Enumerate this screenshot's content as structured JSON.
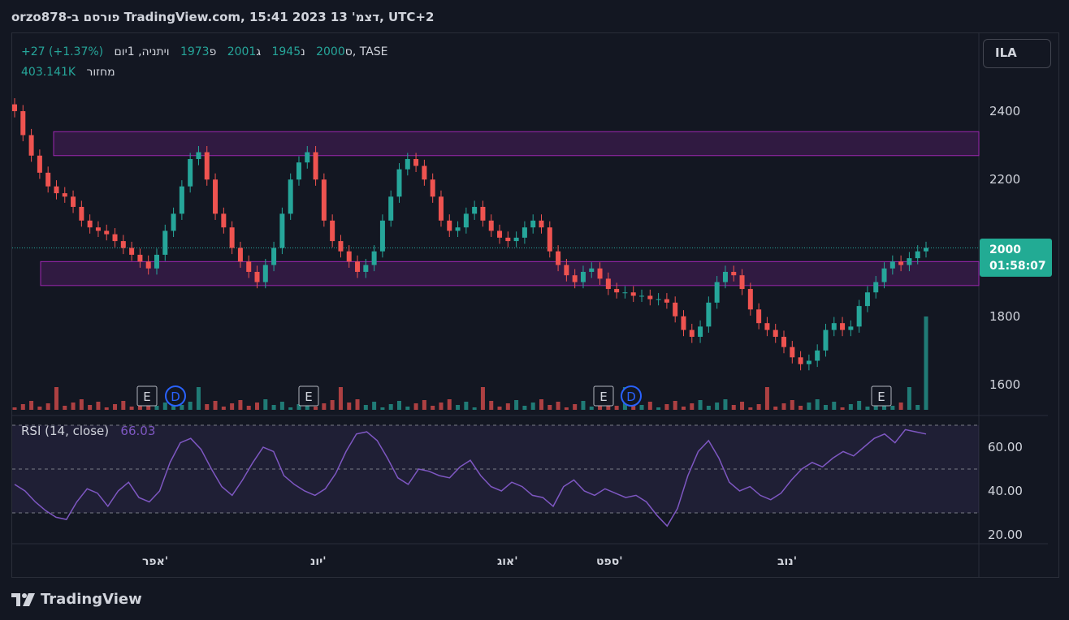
{
  "header": {
    "title": "orzo878-פורסם ב TradingView.com, 15:41 2023 דצמ' 13, UTC+2"
  },
  "legend": {
    "symbol": "ויתניה, 1יום, TASE",
    "open_label": "פ",
    "open": "1973",
    "high_label": "ג",
    "high": "2001",
    "low_label": "נ",
    "low": "1945",
    "close_label": "ס",
    "close": "2000",
    "change": "+27 (+1.37%)",
    "volume_label": "מחזור",
    "volume": "403.141K"
  },
  "symbol_box": "ILA",
  "price_tag": {
    "price": "2000",
    "countdown": "01:58:07"
  },
  "colors": {
    "up": "#26a69a",
    "down": "#ef5350",
    "zone": "#9c27b0",
    "rsi": "#7e57c2",
    "tag": "#22ab94"
  },
  "rsi_panel": {
    "label": "RSI (14, close)",
    "value": "66.03",
    "bands": [
      30,
      50,
      70
    ]
  },
  "y_axis_price": [
    "2400",
    "2200",
    "1800",
    "1600"
  ],
  "y_axis_rsi": [
    "60.00",
    "40.00",
    "20.00"
  ],
  "x_axis": [
    "אפר'",
    "יונ'",
    "אוג'",
    "ספט'",
    "נוב'"
  ],
  "event_markers": [
    "E",
    "D",
    "E",
    "E",
    "D",
    "E"
  ],
  "footer": {
    "brand": "TradingView"
  },
  "chart_data": {
    "type": "candlestick",
    "y_axis_ticks": [
      2400,
      2200,
      1800,
      1600
    ],
    "zones": [
      {
        "low": 2270,
        "high": 2340
      },
      {
        "low": 1890,
        "high": 1960
      }
    ],
    "close_series_approx": [
      2400,
      2330,
      2270,
      2220,
      2180,
      2160,
      2150,
      2120,
      2080,
      2060,
      2050,
      2040,
      2020,
      2000,
      1980,
      1960,
      1940,
      1980,
      2050,
      2100,
      2180,
      2260,
      2280,
      2200,
      2100,
      2060,
      2000,
      1960,
      1930,
      1900,
      1950,
      2000,
      2100,
      2200,
      2250,
      2280,
      2200,
      2080,
      2020,
      1990,
      1960,
      1930,
      1950,
      1990,
      2080,
      2150,
      2230,
      2260,
      2240,
      2200,
      2150,
      2080,
      2050,
      2060,
      2100,
      2120,
      2080,
      2050,
      2030,
      2020,
      2030,
      2060,
      2080,
      2060,
      1990,
      1950,
      1920,
      1900,
      1930,
      1940,
      1910,
      1880,
      1870,
      1870,
      1860,
      1860,
      1850,
      1850,
      1840,
      1800,
      1760,
      1740,
      1770,
      1840,
      1900,
      1930,
      1920,
      1880,
      1820,
      1780,
      1760,
      1740,
      1710,
      1680,
      1660,
      1670,
      1700,
      1760,
      1780,
      1760,
      1770,
      1830,
      1870,
      1900,
      1940,
      1960,
      1950,
      1970,
      1990,
      2000
    ],
    "volume_spikes_approx": [
      {
        "index": 109,
        "value": 403141
      }
    ],
    "rsi_series_approx": [
      43,
      40,
      35,
      31,
      28,
      27,
      35,
      41,
      39,
      33,
      40,
      44,
      37,
      35,
      40,
      53,
      62,
      64,
      59,
      50,
      42,
      38,
      45,
      53,
      60,
      58,
      47,
      43,
      40,
      38,
      41,
      48,
      58,
      66,
      67,
      63,
      55,
      46,
      43,
      50,
      49,
      47,
      46,
      51,
      54,
      47,
      42,
      40,
      44,
      42,
      38,
      37,
      33,
      42,
      45,
      40,
      38,
      41,
      39,
      37,
      38,
      35,
      29,
      24,
      32,
      47,
      58,
      63,
      55,
      44,
      40,
      42,
      38,
      36,
      39,
      45,
      50,
      53,
      51,
      55,
      58,
      56,
      60,
      64,
      66,
      62,
      68,
      67,
      66
    ]
  }
}
